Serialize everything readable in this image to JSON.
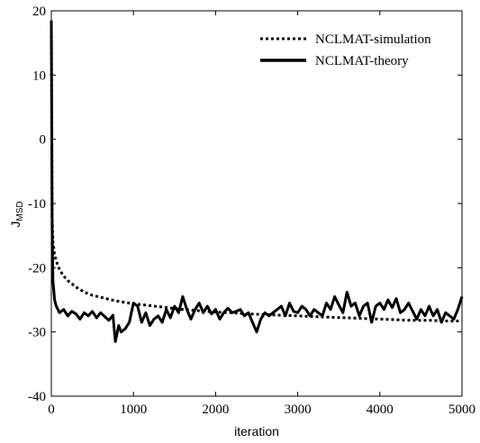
{
  "chart_data": {
    "type": "line",
    "xlabel": "iteration",
    "ylabel_main": "J",
    "ylabel_sub": "MSD",
    "xlim": [
      0,
      5000
    ],
    "ylim": [
      -40,
      20
    ],
    "xticks": [
      0,
      1000,
      2000,
      3000,
      4000,
      5000
    ],
    "yticks": [
      20,
      10,
      0,
      -10,
      -20,
      -30,
      -40
    ],
    "xtick_labels": [
      "0",
      "1000",
      "2000",
      "3000",
      "4000",
      "5000"
    ],
    "ytick_labels": [
      "20",
      "10",
      "0",
      "-10",
      "-20",
      "-30",
      "-40"
    ],
    "grid": false,
    "legend_position": "top-right",
    "series": [
      {
        "name": "NCLMAT-simulation",
        "style": "dotted",
        "color": "#000000",
        "x": [
          0,
          5,
          10,
          20,
          40,
          60,
          100,
          150,
          200,
          300,
          400,
          500,
          600,
          700,
          800,
          900,
          1000,
          1200,
          1400,
          1600,
          1800,
          2000,
          2200,
          2400,
          2600,
          2800,
          3000,
          3200,
          3400,
          3600,
          3800,
          4000,
          4200,
          4400,
          4600,
          4800,
          5000
        ],
        "y": [
          17,
          5,
          -12,
          -16,
          -18,
          -19,
          -20.3,
          -21.3,
          -22,
          -23,
          -23.8,
          -24.3,
          -24.6,
          -24.9,
          -25.2,
          -25.4,
          -25.6,
          -25.9,
          -26.2,
          -26.5,
          -26.7,
          -26.9,
          -27,
          -27.2,
          -27.3,
          -27.4,
          -27.5,
          -27.6,
          -27.7,
          -27.8,
          -27.9,
          -28,
          -28.1,
          -28.2,
          -28.2,
          -28.3,
          -28.3
        ]
      },
      {
        "name": "NCLMAT-theory",
        "style": "solid",
        "color": "#000000",
        "x": [
          0,
          5,
          10,
          20,
          40,
          60,
          80,
          100,
          150,
          200,
          250,
          300,
          350,
          400,
          450,
          500,
          550,
          600,
          650,
          700,
          750,
          780,
          820,
          850,
          900,
          950,
          1000,
          1050,
          1100,
          1150,
          1200,
          1250,
          1300,
          1350,
          1400,
          1450,
          1500,
          1550,
          1600,
          1650,
          1700,
          1750,
          1800,
          1850,
          1900,
          1950,
          2000,
          2050,
          2100,
          2150,
          2200,
          2250,
          2300,
          2350,
          2400,
          2450,
          2500,
          2550,
          2600,
          2650,
          2700,
          2750,
          2800,
          2850,
          2900,
          2950,
          3000,
          3050,
          3100,
          3150,
          3200,
          3250,
          3300,
          3350,
          3400,
          3450,
          3500,
          3550,
          3600,
          3650,
          3700,
          3750,
          3800,
          3850,
          3900,
          3950,
          4000,
          4050,
          4100,
          4150,
          4200,
          4250,
          4300,
          4350,
          4400,
          4450,
          4500,
          4550,
          4600,
          4650,
          4700,
          4750,
          4800,
          4850,
          4900,
          4950,
          5000
        ],
        "y": [
          18.5,
          0,
          -14,
          -22,
          -25,
          -26,
          -26.5,
          -27,
          -26.5,
          -27.5,
          -26.8,
          -27.2,
          -28,
          -27,
          -27.5,
          -26.8,
          -27.8,
          -27,
          -27.6,
          -28.2,
          -27.4,
          -31.5,
          -29,
          -30,
          -29.5,
          -28.5,
          -25.5,
          -26,
          -28.5,
          -27,
          -29,
          -28,
          -27.5,
          -28.5,
          -26.5,
          -27.8,
          -26,
          -27,
          -24.5,
          -26.5,
          -28,
          -26.5,
          -25.5,
          -27,
          -26,
          -27.2,
          -26.5,
          -28,
          -27,
          -26.3,
          -27,
          -26.8,
          -26.5,
          -27.5,
          -27,
          -28.5,
          -30,
          -28,
          -27,
          -27.5,
          -27,
          -26.5,
          -26,
          -27.5,
          -25.5,
          -26.8,
          -27,
          -26,
          -26.5,
          -27.5,
          -26.5,
          -27,
          -27.5,
          -25.5,
          -26.5,
          -24.5,
          -25.8,
          -27,
          -23.8,
          -26,
          -25.5,
          -27.5,
          -26,
          -25.5,
          -28.5,
          -26,
          -25.5,
          -26.5,
          -25,
          -26.2,
          -24.8,
          -27,
          -26.5,
          -25.5,
          -26.8,
          -28,
          -26.5,
          -27.5,
          -26,
          -27.5,
          -26.5,
          -28.5,
          -27,
          -27.5,
          -28,
          -26.5,
          -24.5
        ]
      }
    ]
  }
}
